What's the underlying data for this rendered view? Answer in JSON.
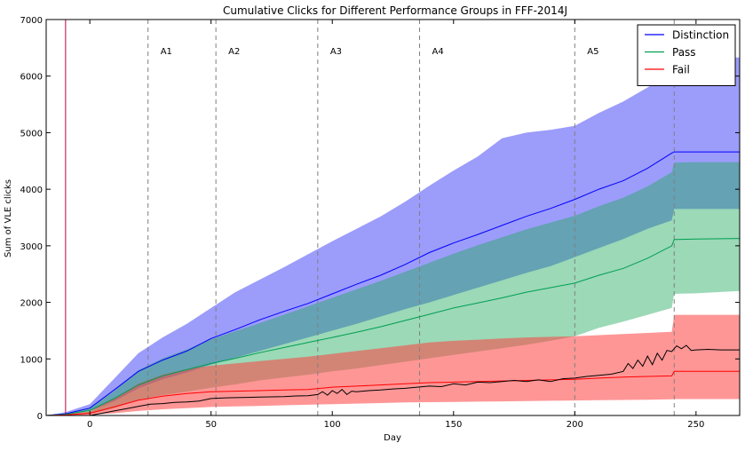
{
  "chart_data": {
    "type": "line",
    "title": "Cumulative Clicks for Different Performance Groups in FFF-2014J",
    "xlabel": "Day",
    "ylabel": "Sum of VLE clicks",
    "xlim": [
      -18,
      268
    ],
    "ylim": [
      0,
      7000
    ],
    "x_ticks": [
      0,
      50,
      100,
      150,
      200,
      250
    ],
    "y_ticks": [
      0,
      1000,
      2000,
      3000,
      4000,
      5000,
      6000,
      7000
    ],
    "grid": false,
    "legend_position": "top-right",
    "start_marker": {
      "x": -10,
      "color": "#bf0040"
    },
    "assessments": [
      {
        "label": "A1",
        "x": 24
      },
      {
        "label": "A2",
        "x": 52
      },
      {
        "label": "A3",
        "x": 94
      },
      {
        "label": "A4",
        "x": 136
      },
      {
        "label": "A5",
        "x": 200
      }
    ],
    "end_line": {
      "x": 241
    },
    "series": [
      {
        "name": "Distinction",
        "color": "#0000ff",
        "band_color": "#3a3af5",
        "band_opacity": 0.5,
        "x": [
          -18,
          -10,
          0,
          10,
          20,
          30,
          40,
          50,
          60,
          70,
          80,
          90,
          100,
          110,
          120,
          130,
          140,
          150,
          160,
          170,
          180,
          190,
          200,
          210,
          220,
          230,
          240,
          241,
          250,
          268
        ],
        "y": [
          0,
          30,
          130,
          450,
          780,
          980,
          1140,
          1360,
          1520,
          1690,
          1840,
          1980,
          2150,
          2320,
          2480,
          2670,
          2880,
          3050,
          3200,
          3360,
          3520,
          3660,
          3820,
          4000,
          4150,
          4370,
          4640,
          4660,
          4660,
          4660
        ],
        "upper": [
          0,
          60,
          200,
          650,
          1100,
          1380,
          1620,
          1900,
          2180,
          2400,
          2620,
          2850,
          3080,
          3300,
          3520,
          3780,
          4060,
          4330,
          4580,
          4900,
          5000,
          5050,
          5120,
          5350,
          5550,
          5800,
          6050,
          6330,
          6330,
          6330
        ],
        "lower": [
          0,
          10,
          80,
          250,
          480,
          640,
          760,
          900,
          1020,
          1140,
          1260,
          1380,
          1500,
          1620,
          1750,
          1880,
          2000,
          2130,
          2260,
          2390,
          2520,
          2640,
          2800,
          2960,
          3120,
          3300,
          3450,
          3650,
          3650,
          3650
        ]
      },
      {
        "name": "Pass",
        "color": "#009e50",
        "band_color": "#22aa60",
        "band_opacity": 0.45,
        "x": [
          -18,
          -10,
          0,
          10,
          20,
          30,
          40,
          50,
          60,
          70,
          80,
          90,
          100,
          110,
          120,
          130,
          140,
          150,
          160,
          170,
          180,
          190,
          200,
          210,
          220,
          230,
          240,
          241,
          250,
          268
        ],
        "y": [
          0,
          20,
          90,
          300,
          540,
          700,
          810,
          920,
          1010,
          1110,
          1200,
          1290,
          1380,
          1470,
          1570,
          1680,
          1790,
          1900,
          1990,
          2080,
          2180,
          2260,
          2340,
          2480,
          2600,
          2780,
          3000,
          3110,
          3120,
          3130
        ],
        "upper": [
          0,
          40,
          140,
          430,
          800,
          1010,
          1170,
          1350,
          1490,
          1630,
          1780,
          1930,
          2080,
          2230,
          2380,
          2540,
          2700,
          2860,
          3010,
          3150,
          3290,
          3410,
          3530,
          3700,
          3850,
          4050,
          4300,
          4470,
          4480,
          4480
        ],
        "lower": [
          0,
          5,
          30,
          130,
          280,
          360,
          420,
          490,
          550,
          620,
          670,
          720,
          780,
          830,
          890,
          950,
          1010,
          1070,
          1130,
          1190,
          1250,
          1320,
          1400,
          1550,
          1660,
          1780,
          1900,
          2150,
          2160,
          2200
        ]
      },
      {
        "name": "Fail",
        "color": "#ff0000",
        "band_color": "#ff4040",
        "band_opacity": 0.55,
        "x": [
          -18,
          -10,
          0,
          10,
          20,
          30,
          40,
          50,
          60,
          70,
          80,
          90,
          100,
          110,
          120,
          130,
          140,
          150,
          160,
          170,
          180,
          190,
          200,
          210,
          220,
          230,
          240,
          241,
          250,
          268
        ],
        "y": [
          0,
          10,
          40,
          150,
          270,
          340,
          390,
          420,
          430,
          440,
          450,
          460,
          500,
          520,
          540,
          560,
          580,
          590,
          600,
          610,
          620,
          630,
          640,
          660,
          680,
          690,
          700,
          780,
          780,
          780
        ],
        "upper": [
          0,
          20,
          70,
          300,
          560,
          720,
          820,
          880,
          920,
          960,
          1000,
          1040,
          1090,
          1140,
          1190,
          1240,
          1290,
          1320,
          1340,
          1360,
          1380,
          1390,
          1400,
          1420,
          1440,
          1460,
          1480,
          1780,
          1780,
          1780
        ],
        "lower": [
          0,
          2,
          10,
          40,
          80,
          110,
          130,
          150,
          160,
          170,
          180,
          190,
          200,
          210,
          220,
          230,
          235,
          240,
          245,
          250,
          255,
          260,
          265,
          270,
          275,
          280,
          285,
          290,
          290,
          290
        ]
      },
      {
        "name": "",
        "color": "#000000",
        "band_color": null,
        "band_opacity": 0,
        "x": [
          0,
          5,
          10,
          15,
          20,
          25,
          30,
          35,
          40,
          45,
          50,
          55,
          60,
          65,
          70,
          75,
          80,
          85,
          90,
          94,
          96,
          98,
          100,
          102,
          104,
          106,
          108,
          110,
          115,
          120,
          125,
          130,
          135,
          140,
          145,
          150,
          155,
          160,
          165,
          170,
          175,
          180,
          185,
          190,
          195,
          200,
          205,
          210,
          215,
          220,
          222,
          224,
          226,
          228,
          230,
          232,
          234,
          236,
          238,
          240,
          242,
          244,
          246,
          248,
          250,
          255,
          260,
          268
        ],
        "y": [
          0,
          40,
          80,
          120,
          160,
          200,
          210,
          230,
          240,
          255,
          300,
          310,
          315,
          320,
          325,
          330,
          335,
          345,
          350,
          370,
          420,
          360,
          440,
          390,
          460,
          370,
          430,
          420,
          440,
          450,
          470,
          480,
          500,
          520,
          510,
          560,
          540,
          590,
          580,
          600,
          620,
          600,
          630,
          600,
          650,
          660,
          690,
          710,
          730,
          780,
          920,
          830,
          980,
          870,
          1050,
          900,
          1100,
          980,
          1150,
          1130,
          1230,
          1180,
          1240,
          1150,
          1160,
          1170,
          1160,
          1160
        ]
      }
    ]
  }
}
